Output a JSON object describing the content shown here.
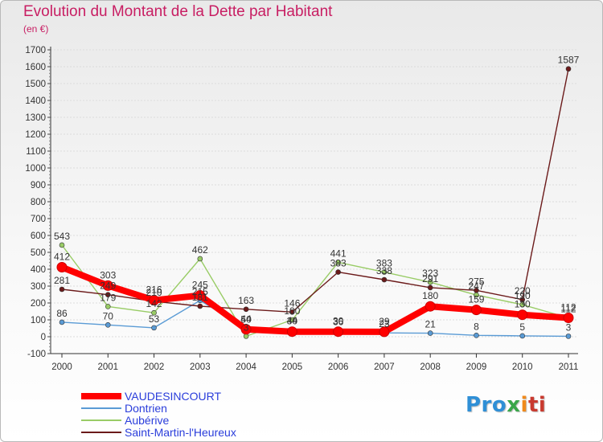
{
  "title": "Evolution du Montant de la Dette par Habitant",
  "subtitle": "(en €)",
  "logo": {
    "text": "Proxiti",
    "p1": "Pro",
    "p2": "x",
    "p3": "i",
    "p4": "ti"
  },
  "chart_data": {
    "type": "line",
    "title": "Evolution du Montant de la Dette par Habitant",
    "ylabel": "(en €)",
    "xlabel": "",
    "ylim": [
      -100,
      1700
    ],
    "yticks": [
      -100,
      0,
      100,
      200,
      300,
      400,
      500,
      600,
      700,
      800,
      900,
      1000,
      1100,
      1200,
      1300,
      1400,
      1500,
      1600,
      1700
    ],
    "categories": [
      "2000",
      "2001",
      "2002",
      "2003",
      "2004",
      "2005",
      "2006",
      "2007",
      "2008",
      "2009",
      "2010",
      "2011"
    ],
    "legend_position": "bottom-left",
    "series": [
      {
        "name": "VAUDESINCOURT",
        "color": "#ff0000",
        "values": [
          412,
          303,
          216,
          245,
          44,
          30,
          30,
          29,
          180,
          159,
          130,
          112
        ]
      },
      {
        "name": "Dontrien",
        "color": "#5a9bd5",
        "values": [
          86,
          70,
          53,
          215,
          50,
          44,
          36,
          23,
          21,
          8,
          5,
          3
        ]
      },
      {
        "name": "Aubérive",
        "color": "#99cc66",
        "values": [
          543,
          179,
          142,
          462,
          3,
          100,
          441,
          383,
          323,
          247,
          190,
          112
        ]
      },
      {
        "name": "Saint-Martin-l'Heureux",
        "color": "#6b1a1a",
        "values": [
          281,
          249,
          210,
          181,
          163,
          146,
          383,
          338,
          291,
          275,
          220,
          1587
        ]
      }
    ]
  }
}
